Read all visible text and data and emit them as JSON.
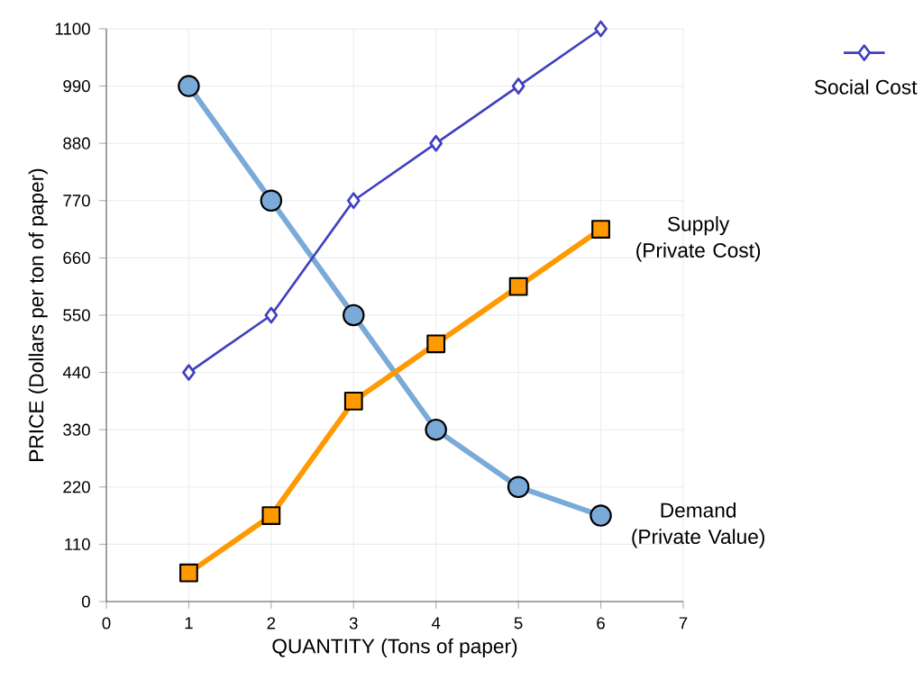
{
  "chart_data": {
    "type": "line",
    "xlabel": "QUANTITY (Tons of paper)",
    "ylabel": "PRICE (Dollars per ton of paper)",
    "x": [
      1,
      2,
      3,
      4,
      5,
      6
    ],
    "xlim": [
      0,
      7
    ],
    "xticks": [
      0,
      1,
      2,
      3,
      4,
      5,
      6,
      7
    ],
    "ylim": [
      0,
      1100
    ],
    "yticks": [
      0,
      110,
      220,
      330,
      440,
      550,
      660,
      770,
      880,
      990,
      1100
    ],
    "grid": true,
    "legend": "top right",
    "series": [
      {
        "color": "#7aaad8",
        "marker": "circle",
        "values": [
          990,
          770,
          550,
          330,
          220,
          165
        ]
      },
      {
        "color": "#ff9900",
        "marker": "square",
        "values": [
          55,
          165,
          385,
          495,
          605,
          715
        ]
      },
      {
        "name": "Social Cost",
        "color": "#4040c0",
        "marker": "diamond",
        "values": [
          440,
          550,
          770,
          880,
          990,
          1100
        ]
      }
    ],
    "annotations": [
      {
        "text": "Supply (Private Cost)",
        "x": 6,
        "y": 715
      },
      {
        "text": "Demand (Private Value)",
        "x": 6,
        "y": 165
      }
    ]
  }
}
